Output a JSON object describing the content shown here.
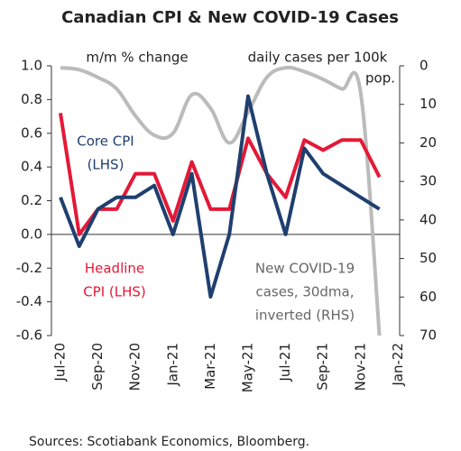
{
  "chart_data": {
    "type": "line",
    "title": "Canadian CPI & New COVID-19 Cases",
    "y_label": "m/m % change",
    "y2_label": [
      "daily cases per 100k",
      "pop."
    ],
    "annotations": [
      {
        "lines": [
          "Core CPI",
          "(LHS)"
        ],
        "color": "#1f3f6e"
      },
      {
        "lines": [
          "Headline",
          "CPI (LHS)"
        ],
        "color": "#e31937"
      },
      {
        "lines": [
          "New COVID-19",
          "cases, 30dma,",
          "inverted (RHS)"
        ],
        "color": "#666666"
      }
    ],
    "categories": [
      "Jul-20",
      null,
      "Sep-20",
      null,
      "Nov-20",
      null,
      "Jan-21",
      null,
      "Mar-21",
      null,
      "May-21",
      null,
      "Jul-21",
      null,
      "Sep-21",
      null,
      "Nov-21",
      null,
      "Jan-22"
    ],
    "series": [
      {
        "name": "Headline CPI (LHS)",
        "color": "#e31937",
        "axis": "y",
        "values": [
          0.72,
          0.0,
          0.15,
          0.15,
          0.36,
          0.36,
          0.08,
          0.43,
          0.15,
          0.15,
          0.57,
          0.36,
          0.22,
          0.56,
          0.5,
          0.56,
          0.56,
          0.34,
          null
        ]
      },
      {
        "name": "Core CPI (LHS)",
        "color": "#1f3f6e",
        "axis": "y",
        "values": [
          0.22,
          -0.07,
          0.15,
          0.22,
          0.22,
          0.29,
          0.0,
          0.36,
          -0.37,
          0.0,
          0.82,
          0.36,
          0.0,
          0.51,
          0.36,
          0.29,
          0.22,
          0.15,
          null
        ]
      },
      {
        "name": "New COVID-19 cases, 30dma, inverted (RHS)",
        "color": "#bbbbbb",
        "axis": "y2",
        "values": [
          0.5,
          1,
          3,
          6,
          13,
          18,
          17.5,
          7.5,
          11,
          20,
          12,
          3,
          0.5,
          1.5,
          3.5,
          6,
          7,
          70,
          null
        ]
      }
    ],
    "ylim": [
      -0.6,
      1.0
    ],
    "yticks": [
      {
        "value": 1.0,
        "label": "1.0"
      },
      0.8,
      0.6,
      0.4,
      0.2,
      {
        "value": 0.0,
        "label": "0.0"
      },
      -0.2,
      -0.4,
      -0.6
    ],
    "y2lim": [
      0,
      70
    ],
    "y2ticks": [
      0,
      10,
      20,
      30,
      40,
      50,
      60,
      70
    ],
    "y2_inverted": true,
    "source": "Sources: Scotiabank Economics, Bloomberg."
  }
}
